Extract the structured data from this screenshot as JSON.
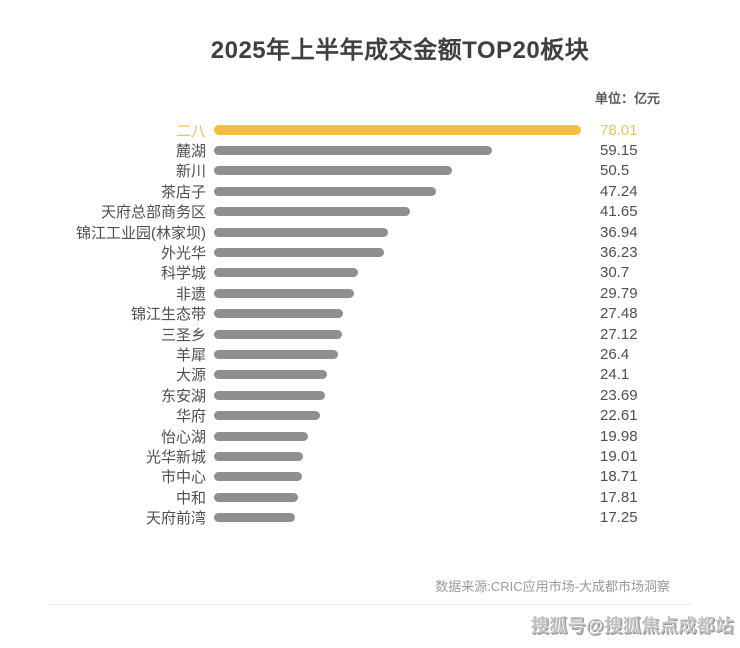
{
  "title": "2025年上半年成交金额TOP20板块",
  "unit_label": "单位：亿元",
  "source": "数据来源:CRIC应用市场-大成都市场洞察",
  "watermark": "搜狐号@搜狐焦点成都站",
  "colors": {
    "highlight_bar": "#f6bd3e",
    "highlight_text": "#efc355",
    "bar_gray": "#8f8f8f",
    "label_text": "#4f4f4f",
    "title_text": "#3f3f3f",
    "source_text": "#9a9a9a"
  },
  "chart_data": {
    "type": "bar",
    "orientation": "horizontal",
    "title": "2025年上半年成交金额TOP20板块",
    "unit": "亿元",
    "legend": "none",
    "grid": false,
    "xlim": [
      0,
      78.01
    ],
    "value_labels_shown": true,
    "highlight_index": 0,
    "categories": [
      "二八",
      "麓湖",
      "新川",
      "茶店子",
      "天府总部商务区",
      "锦江工业园(林家坝)",
      "外光华",
      "科学城",
      "非遗",
      "锦江生态带",
      "三圣乡",
      "羊犀",
      "大源",
      "东安湖",
      "华府",
      "怡心湖",
      "光华新城",
      "市中心",
      "中和",
      "天府前湾"
    ],
    "values": [
      78.01,
      59.15,
      50.5,
      47.24,
      41.65,
      36.94,
      36.23,
      30.7,
      29.79,
      27.48,
      27.12,
      26.4,
      24.1,
      23.69,
      22.61,
      19.98,
      19.01,
      18.71,
      17.81,
      17.25
    ]
  }
}
